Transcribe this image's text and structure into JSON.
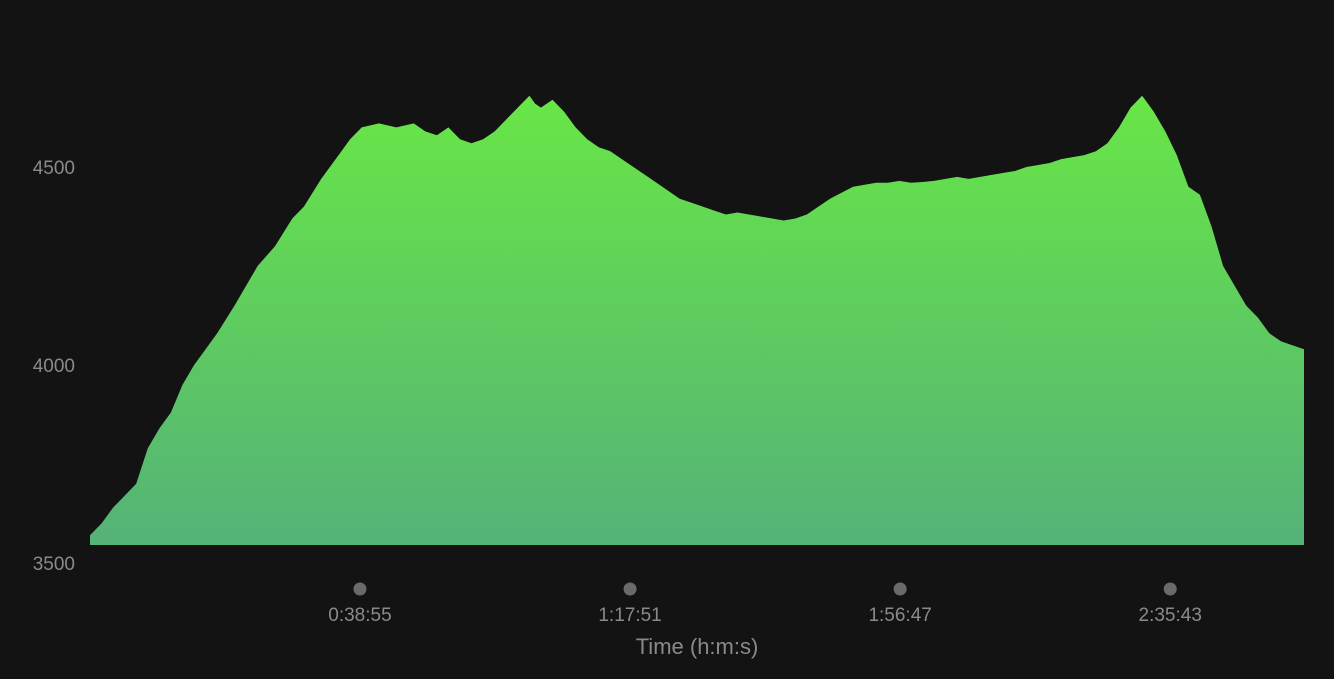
{
  "chart_data": {
    "type": "area",
    "title": "",
    "xlabel": "Time (h:m:s)",
    "ylabel": "",
    "ylim": [
      3500,
      4700
    ],
    "xlim": [
      0,
      10500
    ],
    "yticks": [
      3500,
      4000,
      4500
    ],
    "ytick_labels": [
      "3500",
      "4000",
      "4500"
    ],
    "xticks": [
      2335,
      4671,
      7007,
      9343
    ],
    "xtick_labels": [
      "0:38:55",
      "1:17:51",
      "1:56:47",
      "2:35:43"
    ],
    "grid": false,
    "legend": "none",
    "fill_top_color": "#68E646",
    "fill_bottom_color": "#55B278",
    "background": "#131313",
    "series": [
      {
        "x": [
          0,
          100,
          200,
          400,
          500,
          600,
          700,
          800,
          900,
          1000,
          1100,
          1250,
          1350,
          1450,
          1600,
          1750,
          1850,
          2000,
          2150,
          2250,
          2350,
          2500,
          2650,
          2800,
          2900,
          3000,
          3100,
          3200,
          3300,
          3400,
          3500,
          3600,
          3700,
          3800,
          3850,
          3900,
          4000,
          4100,
          4200,
          4300,
          4400,
          4500,
          4600,
          4700,
          4800,
          4900,
          5000,
          5100,
          5200,
          5300,
          5400,
          5500,
          5600,
          5700,
          5800,
          5900,
          6000,
          6100,
          6200,
          6300,
          6400,
          6500,
          6600,
          6700,
          6800,
          6900,
          7000,
          7100,
          7200,
          7300,
          7400,
          7500,
          7600,
          7700,
          7800,
          7900,
          8000,
          8100,
          8200,
          8300,
          8400,
          8500,
          8600,
          8700,
          8800,
          8900,
          9000,
          9100,
          9200,
          9300,
          9400,
          9500,
          9600,
          9700,
          9800,
          9900,
          10000,
          10100,
          10200,
          10300,
          10400,
          10500
        ],
        "values": [
          3570,
          3600,
          3640,
          3700,
          3790,
          3840,
          3880,
          3950,
          4000,
          4040,
          4080,
          4150,
          4200,
          4250,
          4300,
          4370,
          4400,
          4470,
          4530,
          4570,
          4600,
          4610,
          4600,
          4610,
          4590,
          4580,
          4600,
          4570,
          4560,
          4570,
          4590,
          4620,
          4650,
          4680,
          4660,
          4650,
          4670,
          4640,
          4600,
          4570,
          4550,
          4540,
          4520,
          4500,
          4480,
          4460,
          4440,
          4420,
          4410,
          4400,
          4390,
          4380,
          4385,
          4380,
          4375,
          4370,
          4365,
          4370,
          4380,
          4400,
          4420,
          4435,
          4450,
          4455,
          4460,
          4460,
          4465,
          4460,
          4462,
          4465,
          4470,
          4475,
          4470,
          4475,
          4480,
          4485,
          4490,
          4500,
          4505,
          4510,
          4520,
          4525,
          4530,
          4540,
          4560,
          4600,
          4650,
          4680,
          4640,
          4590,
          4530,
          4450,
          4430,
          4350,
          4250,
          4200,
          4150,
          4120,
          4080,
          4060,
          4050,
          4040
        ]
      }
    ]
  }
}
